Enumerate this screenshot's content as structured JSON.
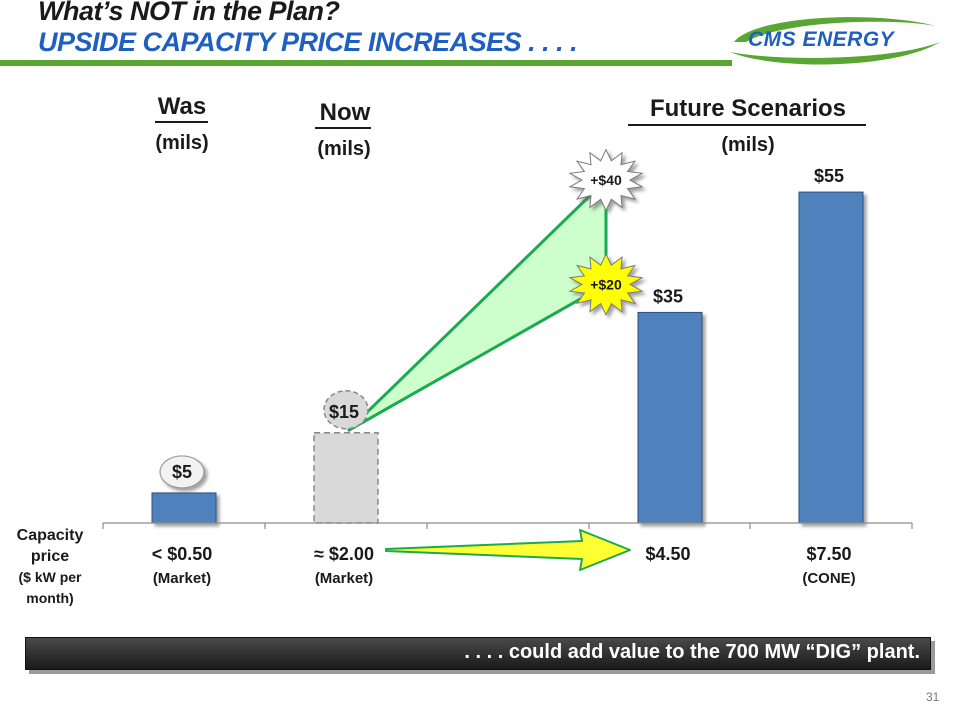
{
  "title": {
    "line1": "What’s NOT in the Plan?",
    "line2": "UPSIDE CAPACITY PRICE INCREASES . . . ."
  },
  "logo": {
    "text": "CMS ENERGY",
    "colors": [
      "#1f5fc0",
      "#5aa632"
    ]
  },
  "headers": {
    "was": {
      "main": "Was",
      "sub": "(mils)"
    },
    "now": {
      "main": "Now",
      "sub": "(mils)"
    },
    "future": {
      "main": "Future Scenarios",
      "sub": "(mils)"
    }
  },
  "chart_data": {
    "type": "bar",
    "ylim": [
      0,
      60
    ],
    "categories": [
      "< $0.50",
      "≈ $2.00",
      "",
      "$4.50",
      "$7.50"
    ],
    "category_notes": [
      "(Market)",
      "(Market)",
      "",
      "",
      "(CONE)"
    ],
    "values": [
      5,
      15,
      null,
      35,
      55
    ],
    "value_labels": [
      "$5",
      "$15",
      "",
      "$35",
      "$55"
    ],
    "bar_styles": [
      "solid",
      "dashed",
      "none",
      "solid",
      "solid"
    ],
    "bar_color": "#4f81bd",
    "dashed_bar_color": "#d9d9d9",
    "starbursts": [
      {
        "label": "+$40",
        "value": 55,
        "fill": "#ffffff"
      },
      {
        "label": "+$20",
        "value": 35,
        "fill": "#ffff00"
      }
    ],
    "connector_fill": "#ccffcc",
    "connector_line": "#1aaa50",
    "arrow_from_category": 1,
    "arrow_to_category": 3,
    "arrow_fill": "#ffff33",
    "axis_label": [
      "Capacity",
      "price",
      "($ kW per",
      "month)"
    ],
    "grid": false
  },
  "footer": {
    "text": ". . . . could add value to the 700 MW “DIG” plant."
  },
  "page_number": "31"
}
